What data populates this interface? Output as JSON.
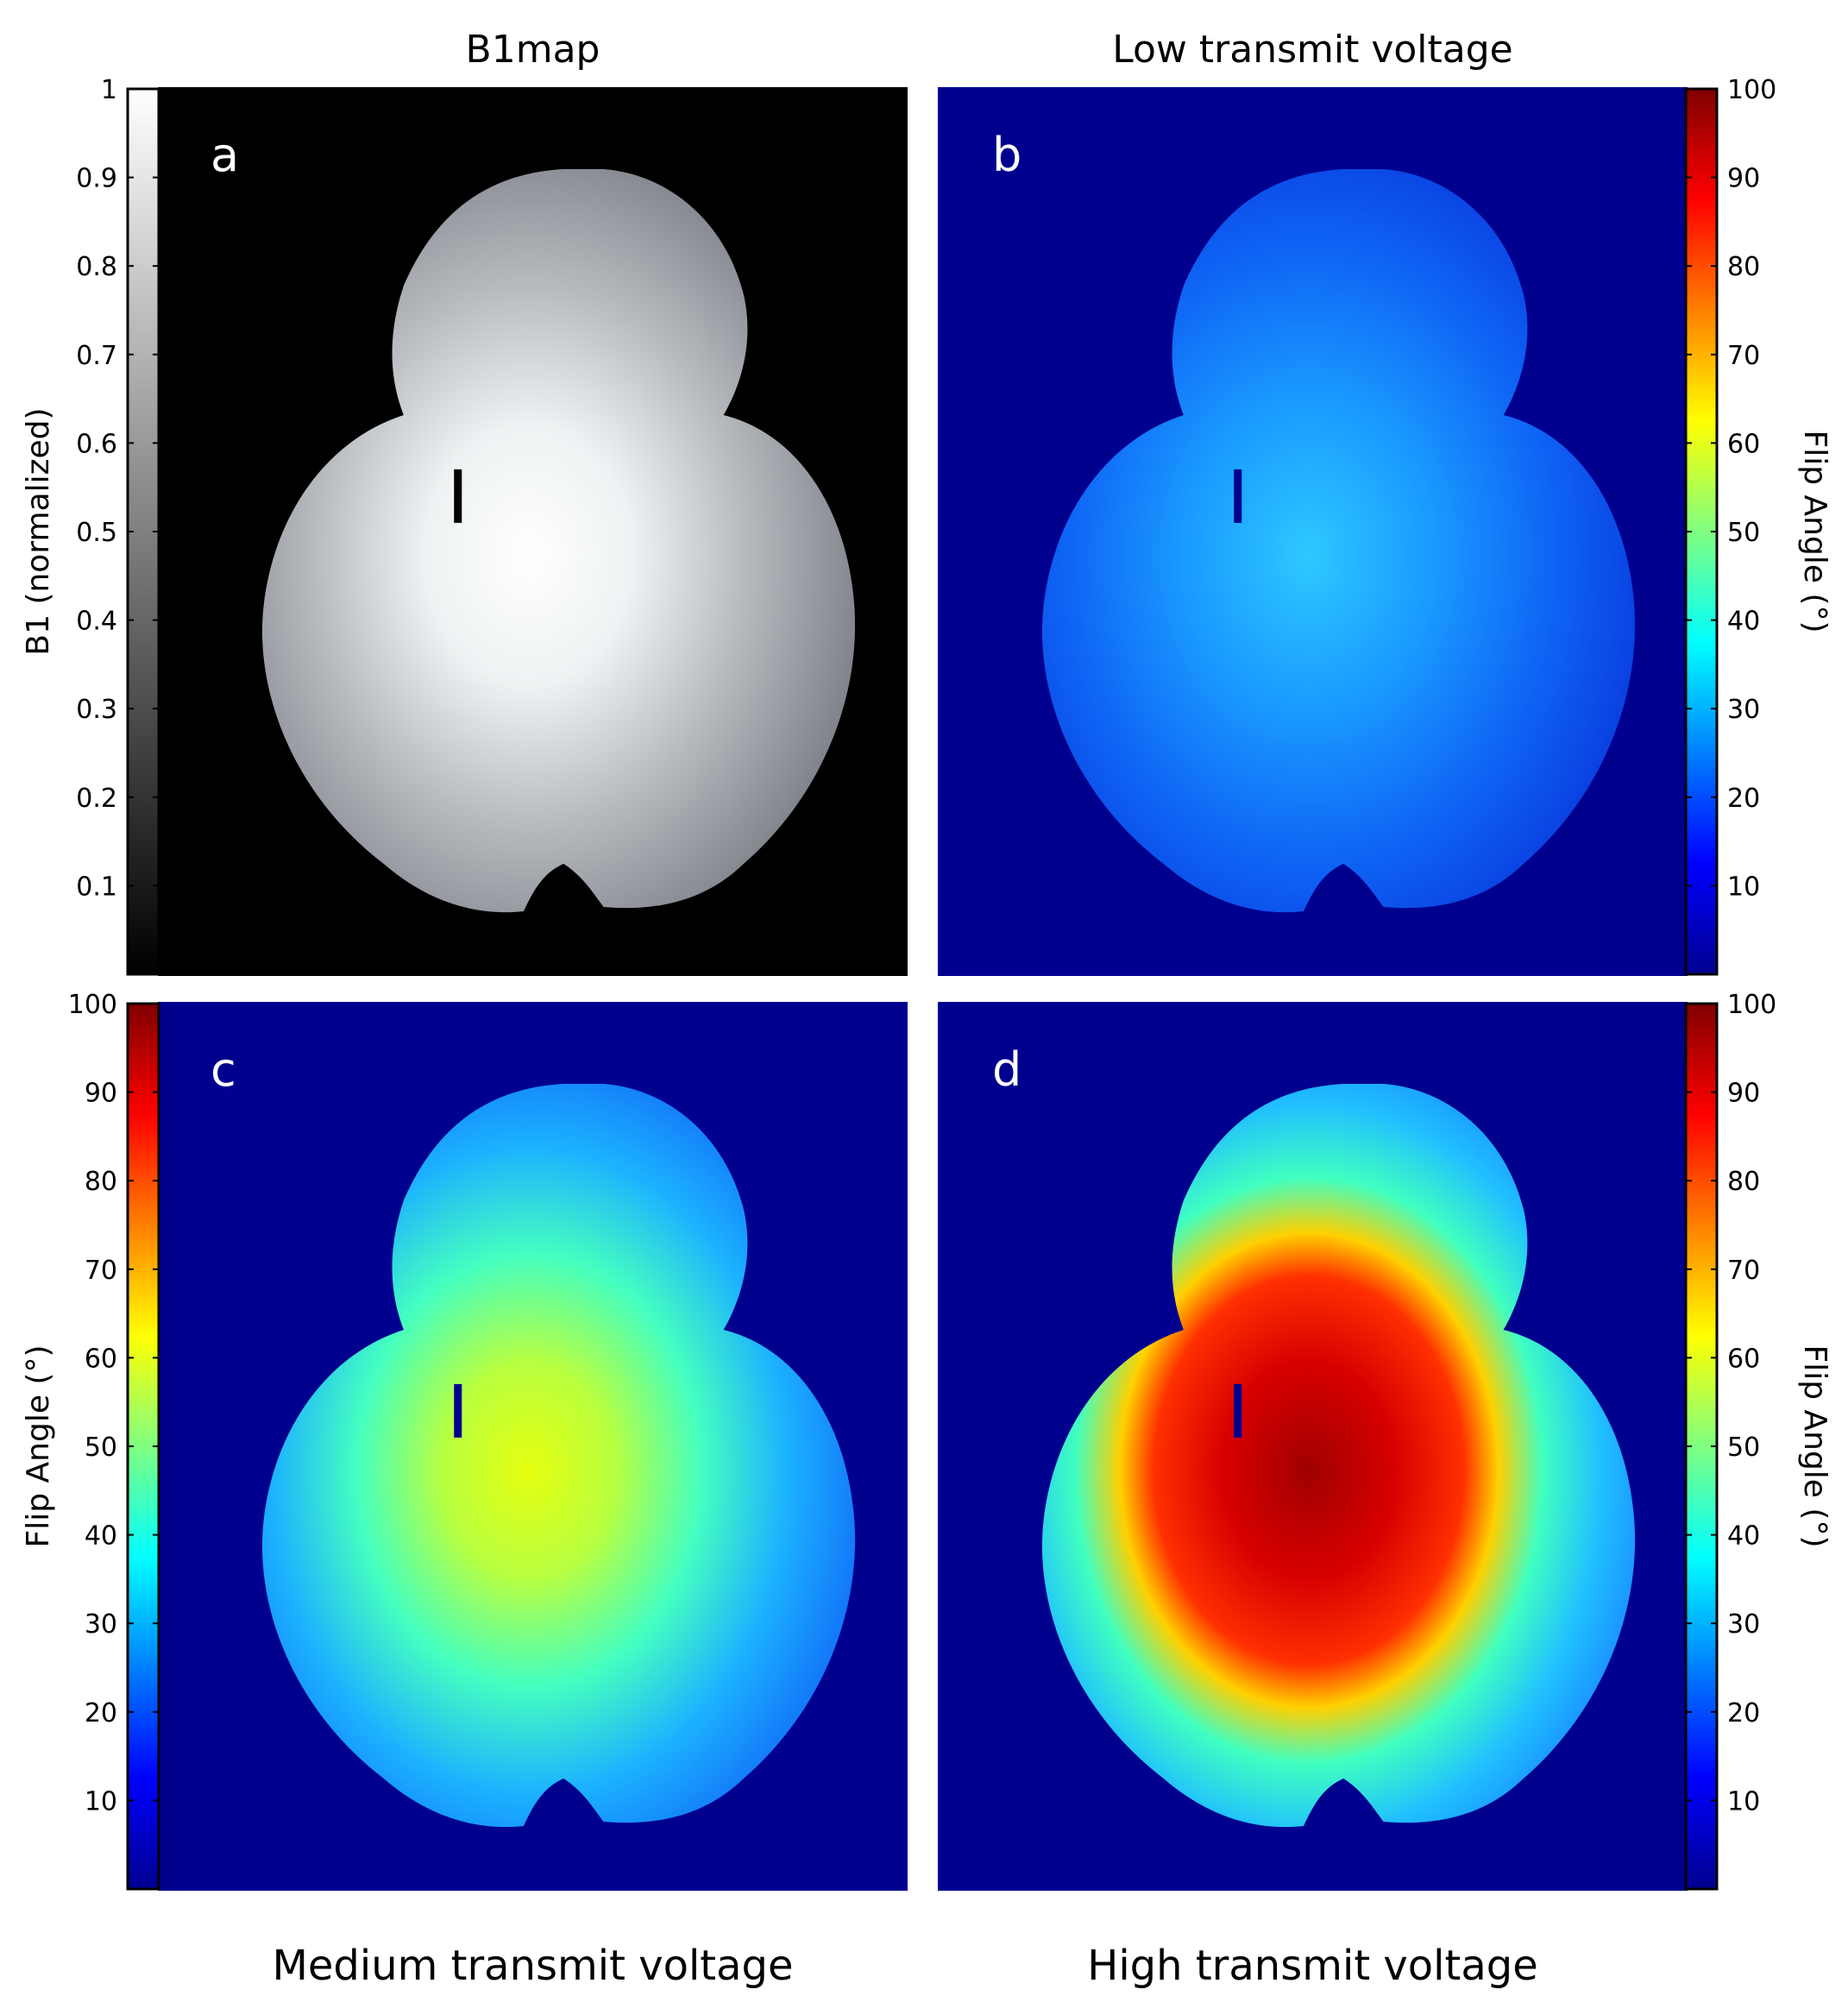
{
  "chart_data": [
    {
      "type": "heatmap",
      "panel": "a",
      "title": "B1map",
      "colormap": "gray",
      "colorbar": {
        "side": "left",
        "label": "B1 (normalized)",
        "range": [
          0,
          1
        ],
        "ticks": [
          0.1,
          0.2,
          0.3,
          0.4,
          0.5,
          0.6,
          0.7,
          0.8,
          0.9,
          1
        ]
      },
      "background_value": 0,
      "regions": [
        {
          "name": "brain-center",
          "value": 1.0
        },
        {
          "name": "brain-periphery",
          "value": 0.45
        },
        {
          "name": "background",
          "value": 0
        }
      ]
    },
    {
      "type": "heatmap",
      "panel": "b",
      "title": "Low transmit voltage",
      "colormap": "jet",
      "colorbar": {
        "side": "right",
        "label": "Flip Angle (°)",
        "range": [
          0,
          100
        ],
        "ticks": [
          10,
          20,
          30,
          40,
          50,
          60,
          70,
          80,
          90,
          100
        ]
      },
      "background_value": 0,
      "regions": [
        {
          "name": "brain-center",
          "value": 33
        },
        {
          "name": "brain-periphery",
          "value": 14
        },
        {
          "name": "background",
          "value": 0
        }
      ]
    },
    {
      "type": "heatmap",
      "panel": "c",
      "title": "Medium transmit voltage",
      "colormap": "jet",
      "colorbar": {
        "side": "left",
        "label": "Flip Angle (°)",
        "range": [
          0,
          100
        ],
        "ticks": [
          10,
          20,
          30,
          40,
          50,
          60,
          70,
          80,
          90,
          100
        ]
      },
      "background_value": 0,
      "regions": [
        {
          "name": "brain-center",
          "value": 62
        },
        {
          "name": "brain-periphery",
          "value": 24
        },
        {
          "name": "background",
          "value": 0
        }
      ]
    },
    {
      "type": "heatmap",
      "panel": "d",
      "title": "High transmit voltage",
      "colormap": "jet",
      "colorbar": {
        "side": "right",
        "label": "Flip Angle (°)",
        "range": [
          0,
          100
        ],
        "ticks": [
          10,
          20,
          30,
          40,
          50,
          60,
          70,
          80,
          90,
          100
        ]
      },
      "background_value": 0,
      "regions": [
        {
          "name": "brain-center",
          "value": 98
        },
        {
          "name": "brain-periphery",
          "value": 30
        },
        {
          "name": "background",
          "value": 0
        }
      ]
    }
  ]
}
